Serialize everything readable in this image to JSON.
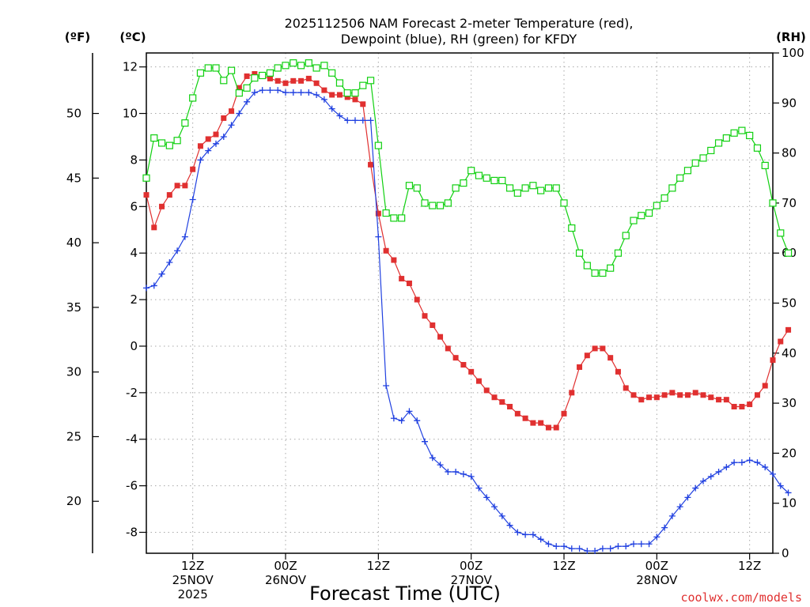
{
  "chart_data": {
    "type": "line",
    "title": [
      "2025112506 NAM Forecast 2-meter Temperature (red),",
      "Dewpoint (blue), RH (green) for KFDY"
    ],
    "units": {
      "fahrenheit": "(ºF)",
      "celsius": "(ºC)",
      "rh": "(RH)"
    },
    "xlabel": "Forecast Time (UTC)",
    "credit": "coolwx.com/models",
    "x_unit": "forecast hour (0 = 2025-11-25 06Z)",
    "xlim": [
      0,
      81
    ],
    "celsius_lim": [
      -8.9,
      12.6
    ],
    "rh_lim": [
      0,
      100
    ],
    "celsius_ticks": [
      "12",
      "10",
      "8",
      "6",
      "4",
      "2",
      "0",
      "-2",
      "-4",
      "-6",
      "-8"
    ],
    "fahrenheit_ticks": [
      "50",
      "45",
      "40",
      "35",
      "30",
      "25",
      "20"
    ],
    "rh_ticks": [
      "100",
      "90",
      "80",
      "70",
      "60",
      "50",
      "40",
      "30",
      "20",
      "10",
      "0"
    ],
    "x_ticks": [
      {
        "hour": 6,
        "lines": [
          "12Z",
          "25NOV",
          "2025"
        ]
      },
      {
        "hour": 18,
        "lines": [
          "00Z",
          "26NOV"
        ]
      },
      {
        "hour": 30,
        "lines": [
          "12Z"
        ]
      },
      {
        "hour": 42,
        "lines": [
          "00Z",
          "27NOV"
        ]
      },
      {
        "hour": 54,
        "lines": [
          "12Z"
        ]
      },
      {
        "hour": 66,
        "lines": [
          "00Z",
          "28NOV"
        ]
      },
      {
        "hour": 78,
        "lines": [
          "12Z"
        ]
      }
    ],
    "series": [
      {
        "name": "Temperature",
        "units": "C",
        "color": "#e03030",
        "marker": "filled-square",
        "values": [
          6.5,
          5.1,
          6,
          6.5,
          6.9,
          6.9,
          7.6,
          8.6,
          8.9,
          9.1,
          9.8,
          10.1,
          11.1,
          11.6,
          11.7,
          11.6,
          11.5,
          11.4,
          11.3,
          11.4,
          11.4,
          11.5,
          11.3,
          11,
          10.8,
          10.8,
          10.7,
          10.6,
          10.4,
          7.8,
          5.7,
          4.1,
          3.7,
          2.9,
          2.7,
          2,
          1.3,
          0.9,
          0.4,
          -0.1,
          -0.5,
          -0.8,
          -1.1,
          -1.5,
          -1.9,
          -2.2,
          -2.4,
          -2.6,
          -2.9,
          -3.1,
          -3.3,
          -3.3,
          -3.5,
          -3.5,
          -2.9,
          -2,
          -0.9,
          -0.4,
          -0.1,
          -0.1,
          -0.5,
          -1.1,
          -1.8,
          -2.1,
          -2.3,
          -2.2,
          -2.2,
          -2.1,
          -2,
          -2.1,
          -2.1,
          -2,
          -2.1,
          -2.2,
          -2.3,
          -2.3,
          -2.6,
          -2.6,
          -2.5,
          -2.1,
          -1.7,
          -0.6,
          0.2,
          0.7
        ]
      },
      {
        "name": "Dewpoint",
        "units": "C",
        "color": "#2040e0",
        "marker": "plus",
        "values": [
          2.5,
          2.6,
          3.1,
          3.6,
          4.1,
          4.7,
          6.3,
          8,
          8.4,
          8.7,
          9,
          9.5,
          10,
          10.5,
          10.9,
          11,
          11,
          11,
          10.9,
          10.9,
          10.9,
          10.9,
          10.8,
          10.6,
          10.2,
          9.9,
          9.7,
          9.7,
          9.7,
          9.7,
          4.7,
          -1.7,
          -3.1,
          -3.2,
          -2.8,
          -3.2,
          -4.1,
          -4.8,
          -5.1,
          -5.4,
          -5.4,
          -5.5,
          -5.6,
          -6.1,
          -6.5,
          -6.9,
          -7.3,
          -7.7,
          -8,
          -8.1,
          -8.1,
          -8.3,
          -8.5,
          -8.6,
          -8.6,
          -8.7,
          -8.7,
          -8.8,
          -8.8,
          -8.7,
          -8.7,
          -8.6,
          -8.6,
          -8.5,
          -8.5,
          -8.5,
          -8.2,
          -7.8,
          -7.3,
          -6.9,
          -6.5,
          -6.1,
          -5.8,
          -5.6,
          -5.4,
          -5.2,
          -5,
          -5,
          -4.9,
          -5,
          -5.2,
          -5.5,
          -6,
          -6.3
        ]
      },
      {
        "name": "RH",
        "units": "%",
        "color": "#10d010",
        "marker": "open-square",
        "values": [
          75,
          83,
          82,
          81.5,
          82.5,
          86,
          91,
          96,
          97,
          97,
          94.5,
          96.5,
          92,
          93,
          95,
          95.5,
          96,
          97,
          97.5,
          98,
          97.5,
          98,
          97,
          97.5,
          96,
          94,
          92,
          92,
          93.5,
          94.5,
          81.5,
          68,
          67,
          67,
          73.5,
          73,
          70,
          69.5,
          69.5,
          70,
          73,
          74,
          76.5,
          75.5,
          75,
          74.5,
          74.5,
          73,
          72,
          73,
          73.5,
          72.5,
          73,
          73,
          70,
          65,
          60,
          57.5,
          56,
          56,
          57,
          60,
          63.5,
          66.5,
          67.5,
          68,
          69.5,
          71,
          73,
          75,
          76.5,
          78,
          79,
          80.5,
          82,
          83,
          84,
          84.5,
          83.5,
          81,
          77.5,
          70,
          64,
          60
        ]
      }
    ]
  }
}
